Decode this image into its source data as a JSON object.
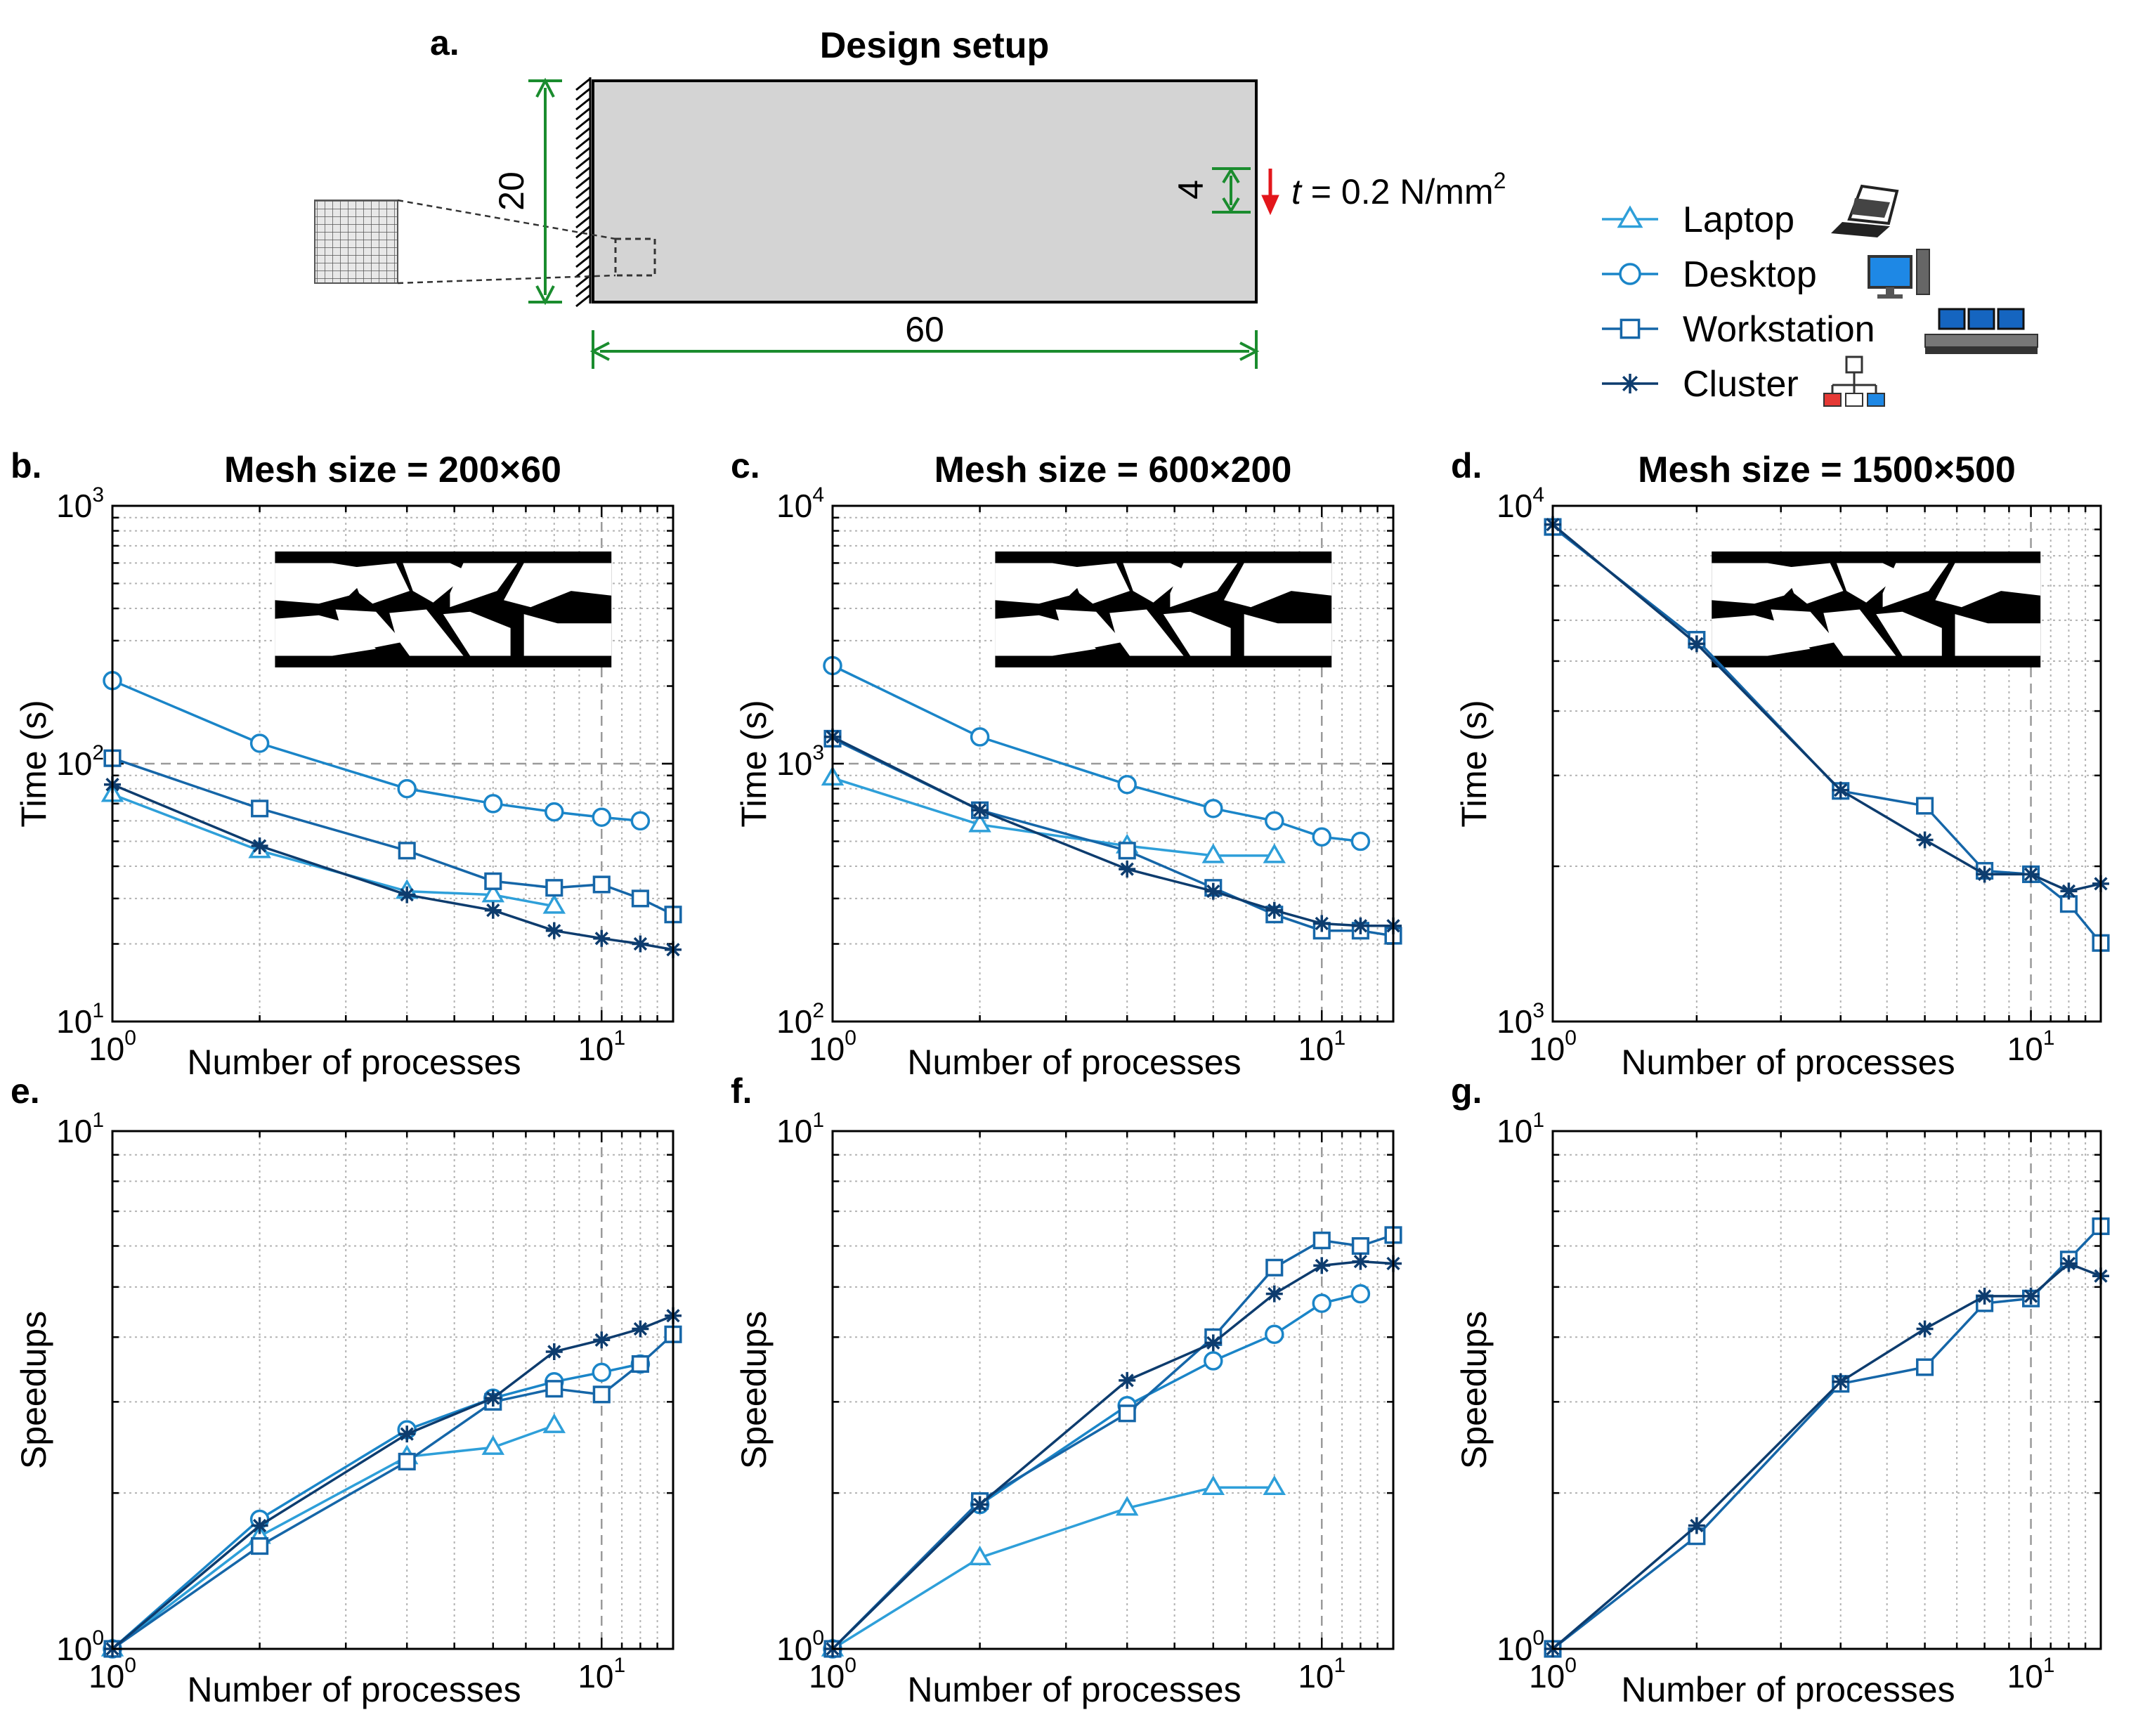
{
  "figure": {
    "design": {
      "label": "a.",
      "title": "Design setup",
      "height_dim": "20",
      "load_dim": "4",
      "width_dim": "60",
      "traction_var": "t",
      "traction_text": " = 0.2 N/mm",
      "traction_sup": "2"
    },
    "colors": {
      "laptop": "#2e9fd9",
      "desktop": "#1a85c8",
      "workstation": "#1566a8",
      "cluster": "#0d3c6e",
      "dimension": "#1a8c2e",
      "load_arrow": "#e3161b"
    },
    "legend": [
      {
        "key": "laptop",
        "label": "Laptop",
        "marker": "triangle",
        "icon": "laptop-icon"
      },
      {
        "key": "desktop",
        "label": "Desktop",
        "marker": "circle",
        "icon": "desktop-icon"
      },
      {
        "key": "workstation",
        "label": "Workstation",
        "marker": "square",
        "icon": "workstation-icon"
      },
      {
        "key": "cluster",
        "label": "Cluster",
        "marker": "asterisk",
        "icon": "cluster-icon"
      }
    ]
  },
  "chart_data": [
    {
      "id": "b",
      "label": "b.",
      "type": "line",
      "title": "Mesh size = 200×60",
      "xlabel": "Number of processes",
      "ylabel": "Time (s)",
      "xscale": "log",
      "yscale": "log",
      "xlim": [
        1,
        14
      ],
      "ylim": [
        10,
        1000
      ],
      "xticks": [
        {
          "mant": "10",
          "exp": "0"
        },
        {
          "mant": "10",
          "exp": "1"
        }
      ],
      "yticks": [
        {
          "mant": "10",
          "exp": "1"
        },
        {
          "mant": "10",
          "exp": "2"
        },
        {
          "mant": "10",
          "exp": "3"
        }
      ],
      "inset": "topology",
      "series": [
        {
          "name": "Laptop",
          "x": [
            1,
            2,
            4,
            6,
            8
          ],
          "y": [
            76,
            46,
            32,
            31,
            28
          ]
        },
        {
          "name": "Desktop",
          "x": [
            1,
            2,
            4,
            6,
            8,
            10,
            12
          ],
          "y": [
            210,
            120,
            80,
            70,
            65,
            62,
            60
          ]
        },
        {
          "name": "Workstation",
          "x": [
            1,
            2,
            4,
            6,
            8,
            10,
            12,
            14
          ],
          "y": [
            105,
            67,
            46,
            35,
            33,
            34,
            30,
            26
          ]
        },
        {
          "name": "Cluster",
          "x": [
            1,
            2,
            4,
            6,
            8,
            10,
            12,
            14
          ],
          "y": [
            83,
            48,
            31,
            27,
            22.5,
            21,
            20,
            19
          ]
        }
      ]
    },
    {
      "id": "c",
      "label": "c.",
      "type": "line",
      "title": "Mesh size = 600×200",
      "xlabel": "Number of processes",
      "ylabel": "Time (s)",
      "xscale": "log",
      "yscale": "log",
      "xlim": [
        1,
        14
      ],
      "ylim": [
        100,
        10000
      ],
      "xticks": [
        {
          "mant": "10",
          "exp": "0"
        },
        {
          "mant": "10",
          "exp": "1"
        }
      ],
      "yticks": [
        {
          "mant": "10",
          "exp": "2"
        },
        {
          "mant": "10",
          "exp": "3"
        },
        {
          "mant": "10",
          "exp": "4"
        }
      ],
      "inset": "topology",
      "series": [
        {
          "name": "Laptop",
          "x": [
            1,
            2,
            4,
            6,
            8
          ],
          "y": [
            880,
            580,
            480,
            440,
            440
          ]
        },
        {
          "name": "Desktop",
          "x": [
            1,
            2,
            4,
            6,
            8,
            10,
            12
          ],
          "y": [
            2400,
            1270,
            830,
            670,
            600,
            520,
            500
          ]
        },
        {
          "name": "Workstation",
          "x": [
            1,
            2,
            4,
            6,
            8,
            10,
            12,
            14
          ],
          "y": [
            1250,
            660,
            460,
            330,
            260,
            225,
            225,
            215
          ]
        },
        {
          "name": "Cluster",
          "x": [
            1,
            2,
            4,
            6,
            8,
            10,
            12,
            14
          ],
          "y": [
            1270,
            660,
            390,
            320,
            270,
            240,
            235,
            235
          ]
        }
      ]
    },
    {
      "id": "d",
      "label": "d.",
      "type": "line",
      "title": "Mesh size = 1500×500",
      "xlabel": "Number of processes",
      "ylabel": "Time (s)",
      "xscale": "log",
      "yscale": "log",
      "xlim": [
        1,
        14
      ],
      "ylim": [
        1000,
        10000
      ],
      "xticks": [
        {
          "mant": "10",
          "exp": "0"
        },
        {
          "mant": "10",
          "exp": "1"
        }
      ],
      "yticks": [
        {
          "mant": "10",
          "exp": "3"
        },
        {
          "mant": "10",
          "exp": "4"
        }
      ],
      "inset": "topology",
      "series": [
        {
          "name": "Workstation",
          "x": [
            1,
            2,
            4,
            6,
            8,
            10,
            12,
            14
          ],
          "y": [
            9100,
            5500,
            2800,
            2620,
            1960,
            1930,
            1690,
            1420
          ]
        },
        {
          "name": "Cluster",
          "x": [
            1,
            2,
            4,
            6,
            8,
            10,
            12,
            14
          ],
          "y": [
            9200,
            5400,
            2810,
            2250,
            1930,
            1930,
            1790,
            1850
          ]
        }
      ]
    },
    {
      "id": "e",
      "label": "e.",
      "type": "line",
      "title": "",
      "xlabel": "Number of processes",
      "ylabel": "Speedups",
      "xscale": "log",
      "yscale": "log",
      "xlim": [
        1,
        14
      ],
      "ylim": [
        1,
        10
      ],
      "xticks": [
        {
          "mant": "10",
          "exp": "0"
        },
        {
          "mant": "10",
          "exp": "1"
        }
      ],
      "yticks": [
        {
          "mant": "10",
          "exp": "0"
        },
        {
          "mant": "10",
          "exp": "1"
        }
      ],
      "series": [
        {
          "name": "Laptop",
          "x": [
            1,
            2,
            4,
            6,
            8
          ],
          "y": [
            1,
            1.65,
            2.35,
            2.45,
            2.7
          ]
        },
        {
          "name": "Desktop",
          "x": [
            1,
            2,
            4,
            6,
            8,
            10,
            12
          ],
          "y": [
            1,
            1.78,
            2.65,
            3.05,
            3.28,
            3.42,
            3.55
          ]
        },
        {
          "name": "Workstation",
          "x": [
            1,
            2,
            4,
            6,
            8,
            10,
            12,
            14
          ],
          "y": [
            1,
            1.58,
            2.3,
            3.0,
            3.18,
            3.1,
            3.55,
            4.05
          ]
        },
        {
          "name": "Cluster",
          "x": [
            1,
            2,
            4,
            6,
            8,
            10,
            12,
            14
          ],
          "y": [
            1,
            1.73,
            2.6,
            3.05,
            3.75,
            3.95,
            4.15,
            4.4
          ]
        }
      ]
    },
    {
      "id": "f",
      "label": "f.",
      "type": "line",
      "title": "",
      "xlabel": "Number of processes",
      "ylabel": "Speedups",
      "xscale": "log",
      "yscale": "log",
      "xlim": [
        1,
        14
      ],
      "ylim": [
        1,
        10
      ],
      "xticks": [
        {
          "mant": "10",
          "exp": "0"
        },
        {
          "mant": "10",
          "exp": "1"
        }
      ],
      "yticks": [
        {
          "mant": "10",
          "exp": "0"
        },
        {
          "mant": "10",
          "exp": "1"
        }
      ],
      "series": [
        {
          "name": "Laptop",
          "x": [
            1,
            2,
            4,
            6,
            8
          ],
          "y": [
            1,
            1.5,
            1.87,
            2.05,
            2.05
          ]
        },
        {
          "name": "Desktop",
          "x": [
            1,
            2,
            4,
            6,
            8,
            10,
            12
          ],
          "y": [
            1,
            1.9,
            2.95,
            3.6,
            4.05,
            4.65,
            4.85
          ]
        },
        {
          "name": "Workstation",
          "x": [
            1,
            2,
            4,
            6,
            8,
            10,
            12,
            14
          ],
          "y": [
            1,
            1.93,
            2.85,
            4.0,
            5.45,
            6.15,
            6.0,
            6.3
          ]
        },
        {
          "name": "Cluster",
          "x": [
            1,
            2,
            4,
            6,
            8,
            10,
            12,
            14
          ],
          "y": [
            1,
            1.9,
            3.3,
            3.9,
            4.85,
            5.5,
            5.6,
            5.55
          ]
        }
      ]
    },
    {
      "id": "g",
      "label": "g.",
      "type": "line",
      "title": "",
      "xlabel": "Number of processes",
      "ylabel": "Speedups",
      "xscale": "log",
      "yscale": "log",
      "xlim": [
        1,
        14
      ],
      "ylim": [
        1,
        10
      ],
      "xticks": [
        {
          "mant": "10",
          "exp": "0"
        },
        {
          "mant": "10",
          "exp": "1"
        }
      ],
      "yticks": [
        {
          "mant": "10",
          "exp": "0"
        },
        {
          "mant": "10",
          "exp": "1"
        }
      ],
      "series": [
        {
          "name": "Workstation",
          "x": [
            1,
            2,
            4,
            6,
            8,
            10,
            12,
            14
          ],
          "y": [
            1,
            1.65,
            3.25,
            3.5,
            4.65,
            4.75,
            5.65,
            6.55
          ]
        },
        {
          "name": "Cluster",
          "x": [
            1,
            2,
            4,
            6,
            8,
            10,
            12,
            14
          ],
          "y": [
            1,
            1.73,
            3.28,
            4.15,
            4.8,
            4.8,
            5.55,
            5.25
          ]
        }
      ]
    }
  ]
}
